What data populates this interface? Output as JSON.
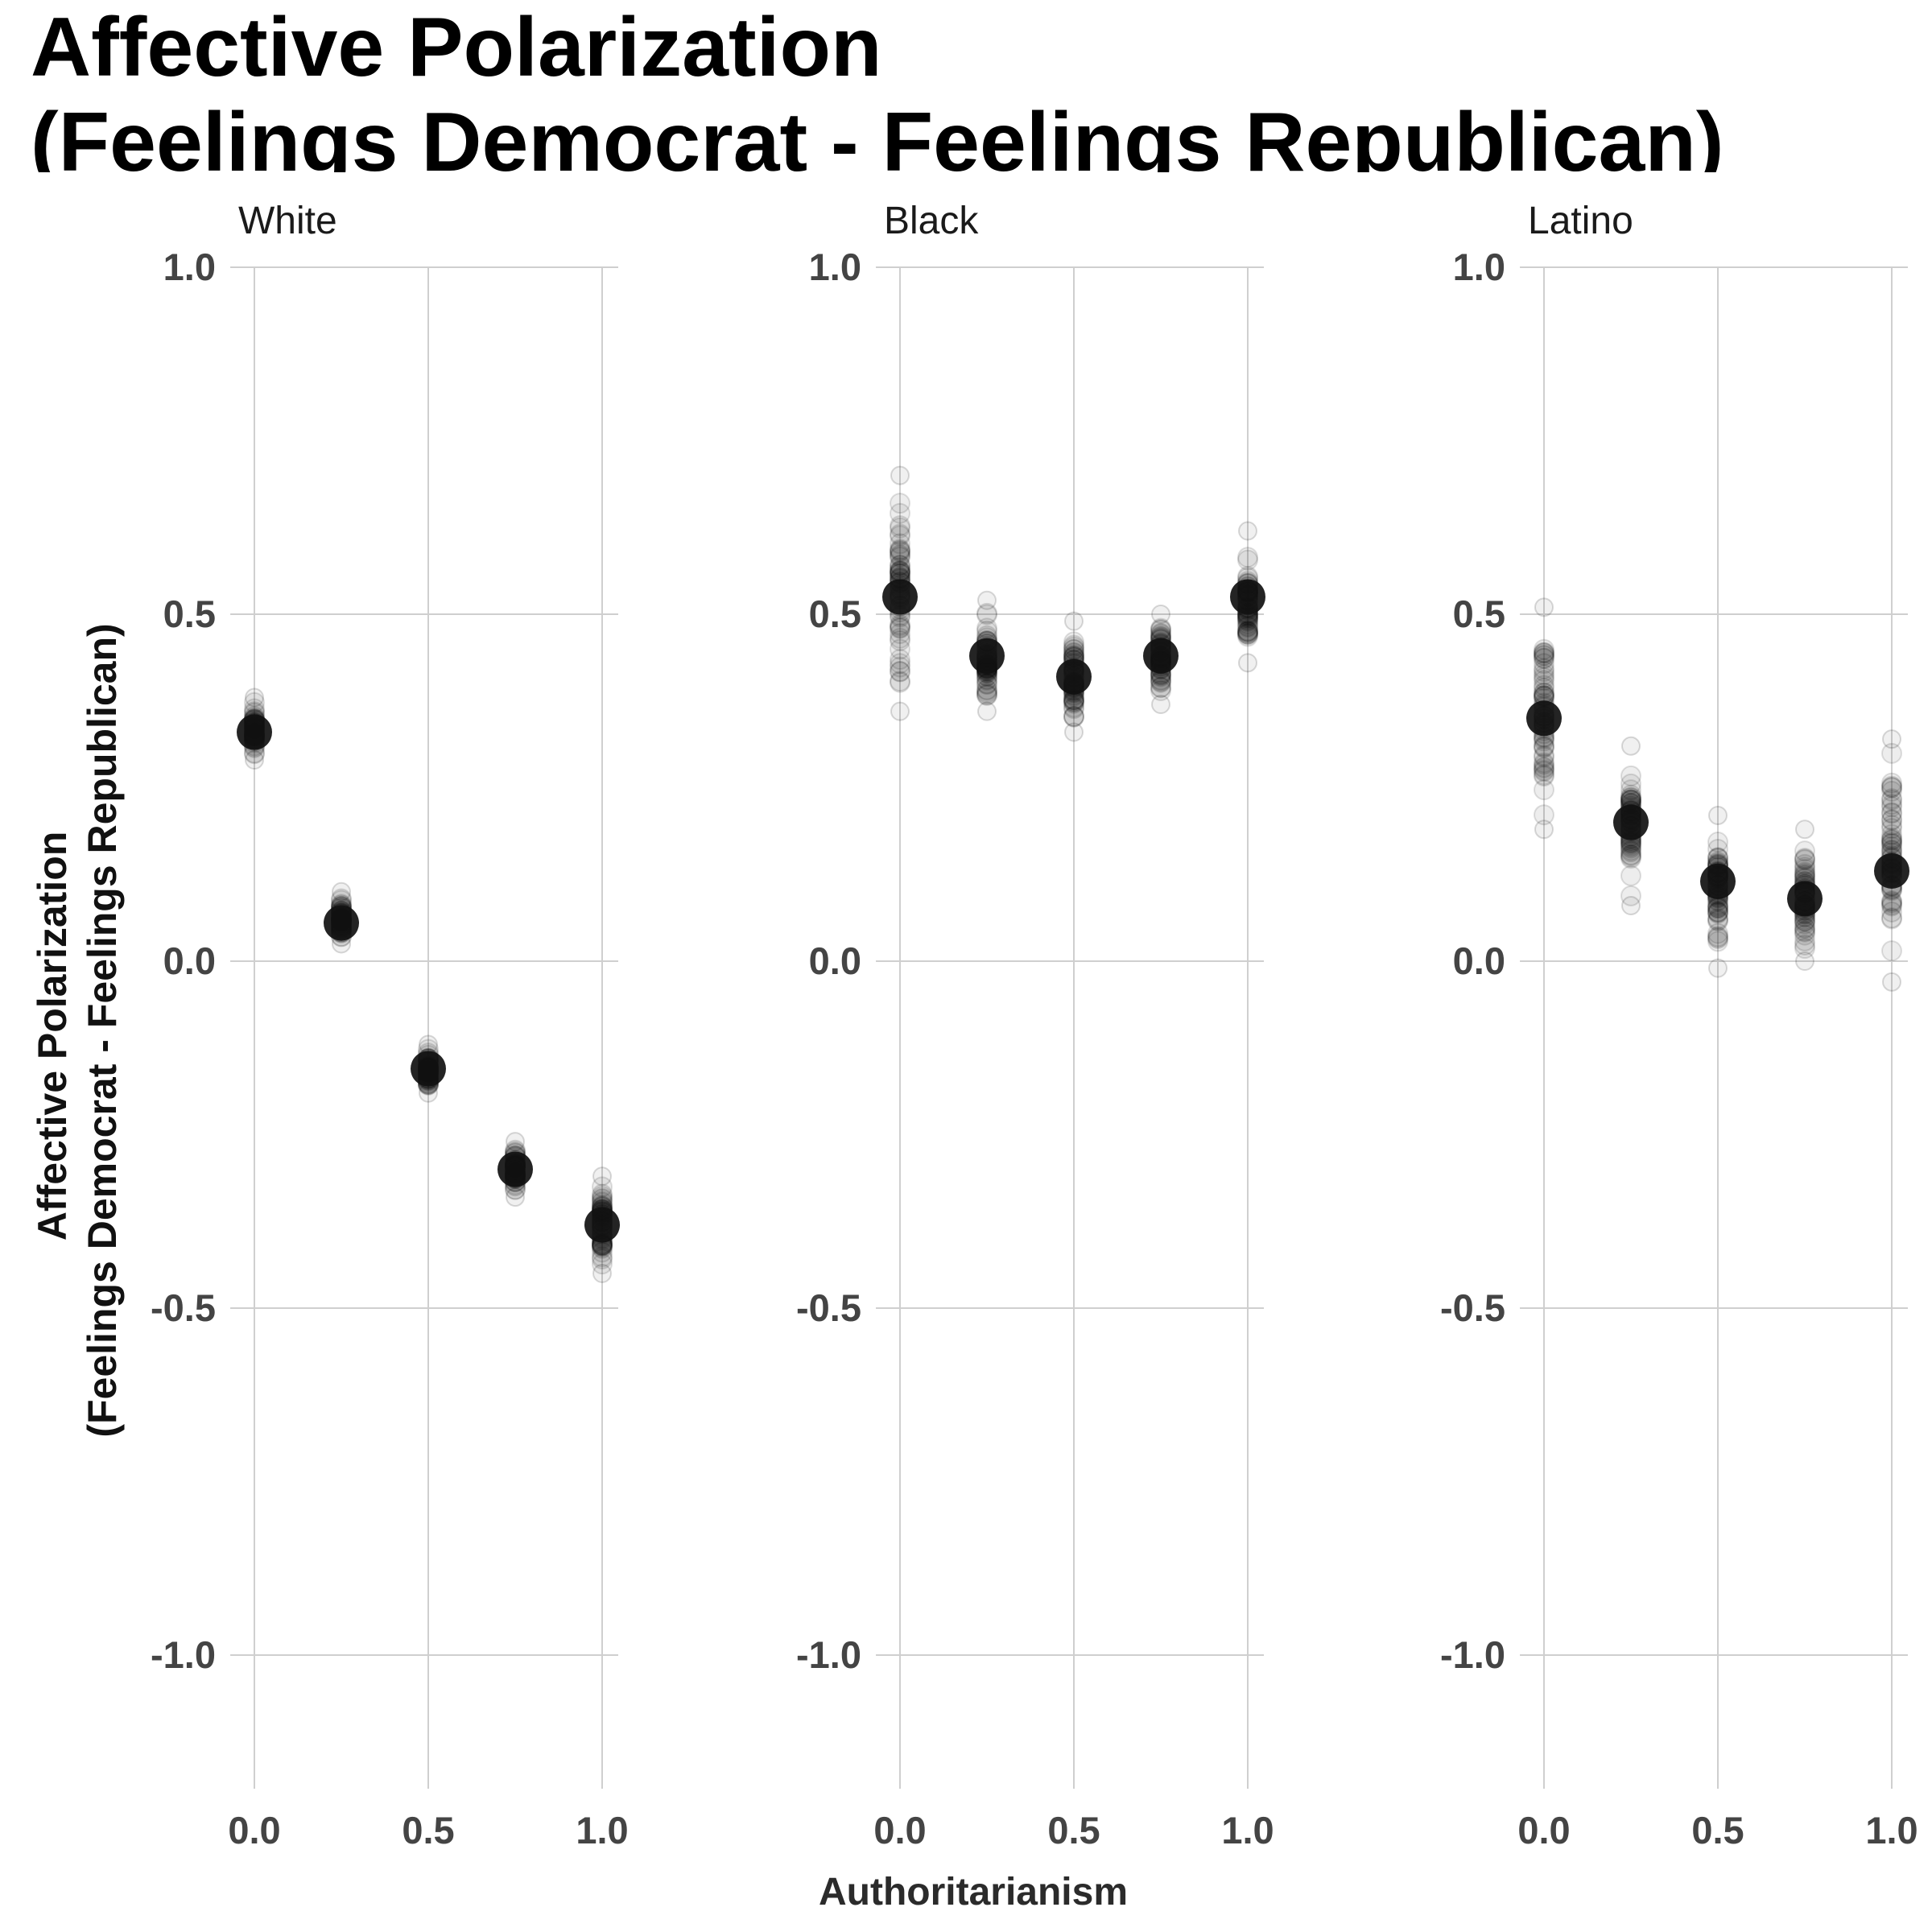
{
  "chart_data": {
    "type": "scatter",
    "title": [
      "Affective Polarization",
      "(Feelings Democrat - Feelings Republican)"
    ],
    "xlabel": "Authoritarianism",
    "ylabel": [
      "Affective Polarization",
      "(Feelings Democrat - Feelings Republican)"
    ],
    "xlim": [
      -0.1,
      1.05
    ],
    "ylim": [
      -1.1,
      1.1
    ],
    "x_ticks": [
      "0.0",
      "0.5",
      "1.0"
    ],
    "y_ticks": [
      "-1.0",
      "-0.5",
      "0.0",
      "0.5",
      "1.0"
    ],
    "grid": true,
    "point_color": "#000000",
    "grid_color": "#cfcfcf",
    "panels": [
      {
        "name": "White",
        "points": [
          {
            "x": 0.0,
            "y": 0.33,
            "spread": [
              0.29,
              0.38
            ]
          },
          {
            "x": 0.25,
            "y": 0.055,
            "spread": [
              0.025,
              0.1
            ]
          },
          {
            "x": 0.5,
            "y": -0.155,
            "spread": [
              -0.19,
              -0.12
            ]
          },
          {
            "x": 0.75,
            "y": -0.3,
            "spread": [
              -0.34,
              -0.26
            ]
          },
          {
            "x": 1.0,
            "y": -0.38,
            "spread": [
              -0.45,
              -0.31
            ]
          }
        ]
      },
      {
        "name": "Black",
        "points": [
          {
            "x": 0.0,
            "y": 0.525,
            "spread": [
              0.36,
              0.7
            ]
          },
          {
            "x": 0.25,
            "y": 0.44,
            "spread": [
              0.36,
              0.52
            ]
          },
          {
            "x": 0.5,
            "y": 0.41,
            "spread": [
              0.33,
              0.49
            ]
          },
          {
            "x": 0.75,
            "y": 0.44,
            "spread": [
              0.37,
              0.5
            ]
          },
          {
            "x": 1.0,
            "y": 0.525,
            "spread": [
              0.43,
              0.62
            ]
          }
        ]
      },
      {
        "name": "Latino",
        "points": [
          {
            "x": 0.0,
            "y": 0.35,
            "spread": [
              0.19,
              0.51
            ]
          },
          {
            "x": 0.25,
            "y": 0.2,
            "spread": [
              0.08,
              0.31
            ]
          },
          {
            "x": 0.5,
            "y": 0.115,
            "spread": [
              -0.01,
              0.21
            ]
          },
          {
            "x": 0.75,
            "y": 0.09,
            "spread": [
              0.0,
              0.19
            ]
          },
          {
            "x": 1.0,
            "y": 0.13,
            "spread": [
              -0.03,
              0.32
            ]
          }
        ]
      }
    ]
  }
}
